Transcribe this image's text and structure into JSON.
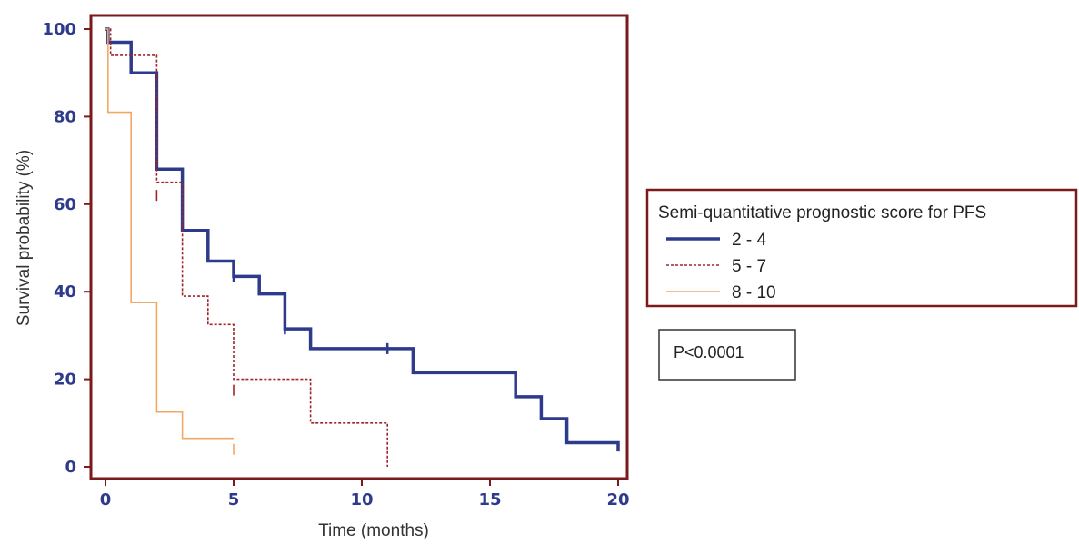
{
  "chart_data": {
    "type": "line",
    "subtype": "kaplan-meier-step",
    "xlabel": "Time (months)",
    "ylabel": "Survival probability (%)",
    "xlim": [
      0,
      20
    ],
    "ylim": [
      0,
      100
    ],
    "xticks": [
      0,
      5,
      10,
      15,
      20
    ],
    "yticks": [
      0,
      20,
      40,
      60,
      80,
      100
    ],
    "grid": false,
    "legend": {
      "title": "Semi-quantitative prognostic score for PFS",
      "placement": "right"
    },
    "annotation": "P<0.0001",
    "series": [
      {
        "name": "2 - 4",
        "color": "#2e3a8c",
        "style": "solid-thick",
        "x": [
          0,
          0.1,
          1,
          2,
          3,
          4,
          5,
          6,
          7,
          8,
          12,
          16,
          17,
          18,
          20
        ],
        "y": [
          100,
          97,
          90,
          68,
          54,
          47,
          43.5,
          39.5,
          31.5,
          27,
          21.5,
          16,
          11,
          5.5,
          3.5
        ],
        "censored": [
          [
            5,
            43.5
          ],
          [
            7,
            31.5
          ],
          [
            11,
            27
          ]
        ]
      },
      {
        "name": "5 - 7",
        "color": "#a0262a",
        "style": "dashed",
        "x": [
          0,
          0.2,
          2,
          3,
          4,
          5,
          8,
          11
        ],
        "y": [
          100,
          94,
          65,
          39,
          32.5,
          20,
          10,
          0
        ],
        "censored": [
          [
            2,
            62
          ],
          [
            5,
            17.5
          ]
        ]
      },
      {
        "name": "8 - 10",
        "color": "#f0a868",
        "style": "thin",
        "x": [
          0,
          0.1,
          1,
          2,
          3,
          5
        ],
        "y": [
          100,
          81,
          37.5,
          12.5,
          6.5,
          6.5
        ],
        "censored": [
          [
            5,
            4
          ]
        ]
      }
    ]
  }
}
